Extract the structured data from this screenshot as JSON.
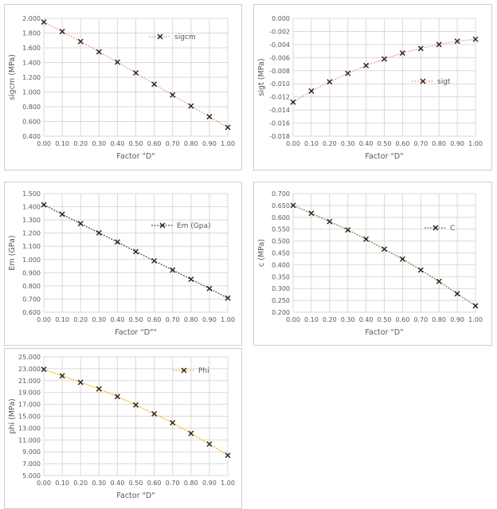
{
  "chart_data": [
    {
      "type": "line",
      "title": "",
      "xlabel": "Factor \"D\"",
      "ylabel": "sigcm (MPa)",
      "x": [
        0,
        0.1,
        0.2,
        0.3,
        0.4,
        0.5,
        0.6,
        0.7,
        0.8,
        0.9,
        1.0
      ],
      "xlim": [
        0,
        1
      ],
      "ylim": [
        0.4,
        2.0
      ],
      "ystep": 0.2,
      "ydecimals": 3,
      "grid": true,
      "legend": "top-right",
      "series": [
        {
          "name": "sigcm",
          "color": "#f4a582",
          "values": [
            1.95,
            1.82,
            1.685,
            1.545,
            1.405,
            1.26,
            1.105,
            0.96,
            0.81,
            0.665,
            0.52
          ]
        }
      ]
    },
    {
      "type": "line",
      "title": "",
      "xlabel": "Factor \"D\"",
      "ylabel": "sigt (MPa)",
      "x": [
        0,
        0.1,
        0.2,
        0.3,
        0.4,
        0.5,
        0.6,
        0.7,
        0.8,
        0.9,
        1.0
      ],
      "xlim": [
        0,
        1
      ],
      "ylim": [
        -0.018,
        0.0
      ],
      "ystep": 0.002,
      "ydecimals": 3,
      "grid": true,
      "legend": "right",
      "series": [
        {
          "name": "sigt",
          "color": "#f4a582",
          "values": [
            -0.0128,
            -0.0111,
            -0.0097,
            -0.0084,
            -0.0072,
            -0.0062,
            -0.0053,
            -0.0046,
            -0.004,
            -0.0035,
            -0.0032
          ]
        }
      ]
    },
    {
      "type": "line",
      "title": "",
      "xlabel": "Factor \"D\"\"",
      "ylabel": "Em (GPa)",
      "x": [
        0,
        0.1,
        0.2,
        0.3,
        0.4,
        0.5,
        0.6,
        0.7,
        0.8,
        0.9,
        1.0
      ],
      "xlim": [
        0,
        1
      ],
      "ylim": [
        0.6,
        1.5
      ],
      "ystep": 0.1,
      "ydecimals": 3,
      "grid": true,
      "legend": "top-right",
      "series": [
        {
          "name": "Em (Gpa)",
          "color": "#555555",
          "values": [
            1.415,
            1.343,
            1.272,
            1.202,
            1.133,
            1.06,
            0.99,
            0.92,
            0.85,
            0.78,
            0.707
          ]
        }
      ]
    },
    {
      "type": "line",
      "title": "",
      "xlabel": "Factor \"D\"",
      "ylabel": "c (MPa)",
      "x": [
        0,
        0.1,
        0.2,
        0.3,
        0.4,
        0.5,
        0.6,
        0.7,
        0.8,
        0.9,
        1.0
      ],
      "xlim": [
        0,
        1
      ],
      "ylim": [
        0.2,
        0.7
      ],
      "ystep": 0.05,
      "ydecimals": 3,
      "grid": true,
      "legend": "top-right",
      "series": [
        {
          "name": "C",
          "color": "#5a9a3c",
          "values": [
            0.65,
            0.617,
            0.582,
            0.547,
            0.508,
            0.466,
            0.424,
            0.378,
            0.33,
            0.278,
            0.227
          ]
        }
      ]
    },
    {
      "type": "line",
      "title": "",
      "xlabel": "Factor \"D\"",
      "ylabel": "phi (MPa)",
      "x": [
        0,
        0.1,
        0.2,
        0.3,
        0.4,
        0.5,
        0.6,
        0.7,
        0.8,
        0.9,
        1.0
      ],
      "xlim": [
        0,
        1
      ],
      "ylim": [
        5,
        25
      ],
      "ystep": 2,
      "ydecimals": 3,
      "grid": true,
      "legend": "top-right",
      "series": [
        {
          "name": "Phi",
          "color": "#f5b800",
          "values": [
            22.9,
            21.8,
            20.7,
            19.6,
            18.3,
            16.9,
            15.4,
            13.9,
            12.1,
            10.3,
            8.4
          ]
        }
      ]
    }
  ]
}
